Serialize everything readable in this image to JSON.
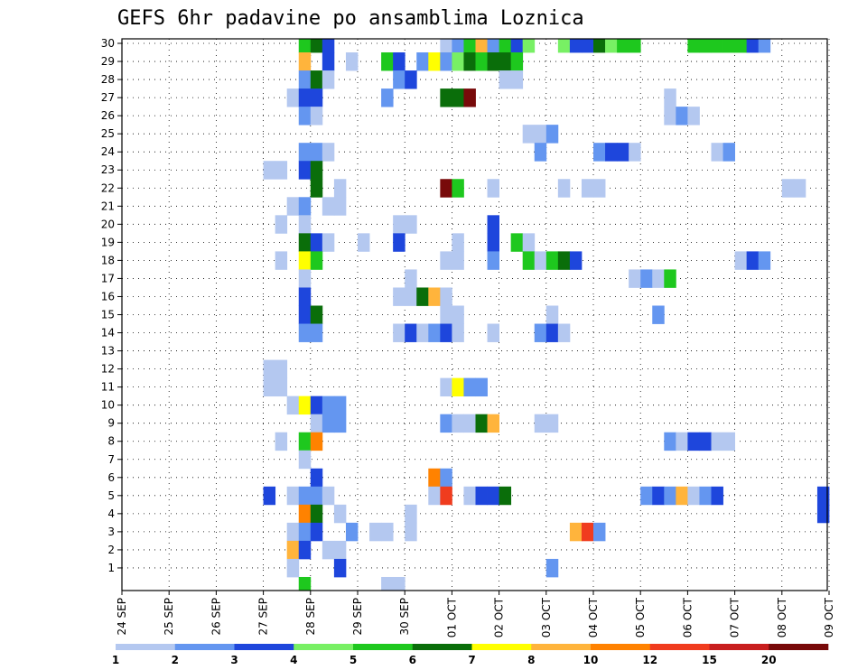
{
  "chart_data": {
    "type": "heatmap",
    "title": "GEFS 6hr padavine po ansamblima Loznica",
    "y_tick_labels": [
      "1",
      "2",
      "3",
      "4",
      "5",
      "6",
      "7",
      "8",
      "9",
      "10",
      "11",
      "12",
      "13",
      "14",
      "15",
      "16",
      "17",
      "18",
      "19",
      "20",
      "21",
      "22",
      "23",
      "24",
      "25",
      "26",
      "27",
      "28",
      "29",
      "30"
    ],
    "x_tick_labels": [
      "24 SEP",
      "25 SEP",
      "26 SEP",
      "27 SEP",
      "28 SEP",
      "29 SEP",
      "30 SEP",
      "01 OCT",
      "02 OCT",
      "03 OCT",
      "04 OCT",
      "05 OCT",
      "06 OCT",
      "07 OCT",
      "08 OCT",
      "09 OCT"
    ],
    "steps_per_day": 4,
    "legend": {
      "labels": [
        "1",
        "2",
        "3",
        "4",
        "5",
        "6",
        "7",
        "8",
        "10",
        "12",
        "15",
        "20"
      ],
      "colors": [
        "#b4c8f0",
        "#6496f0",
        "#1e46dc",
        "#78f064",
        "#1ec81e",
        "#0a6e0a",
        "#ffff00",
        "#ffb43c",
        "#ff8200",
        "#f03c1e",
        "#c81e1e",
        "#780a0a"
      ]
    },
    "cells": [
      {
        "m": 30,
        "t": [
          [
            15,
            4
          ],
          [
            16,
            5
          ],
          [
            17,
            2
          ],
          [
            27,
            0
          ],
          [
            28,
            1
          ],
          [
            29,
            4
          ],
          [
            30,
            7
          ],
          [
            31,
            1
          ],
          [
            32,
            4
          ],
          [
            33,
            2
          ],
          [
            34,
            3
          ],
          [
            37,
            3
          ],
          [
            38,
            2
          ],
          [
            39,
            2
          ],
          [
            40,
            5
          ],
          [
            41,
            3
          ],
          [
            42,
            4
          ],
          [
            43,
            4
          ],
          [
            48,
            4
          ],
          [
            49,
            4
          ],
          [
            50,
            4
          ],
          [
            51,
            4
          ],
          [
            52,
            4
          ],
          [
            53,
            2
          ],
          [
            54,
            1
          ]
        ]
      },
      {
        "m": 29,
        "t": [
          [
            15,
            7
          ],
          [
            17,
            2
          ],
          [
            19,
            0
          ],
          [
            22,
            4
          ],
          [
            23,
            2
          ],
          [
            25,
            1
          ],
          [
            26,
            6
          ],
          [
            27,
            1
          ],
          [
            28,
            3
          ],
          [
            29,
            5
          ],
          [
            30,
            4
          ],
          [
            31,
            5
          ],
          [
            32,
            5
          ],
          [
            33,
            4
          ]
        ]
      },
      {
        "m": 28,
        "t": [
          [
            15,
            1
          ],
          [
            16,
            5
          ],
          [
            17,
            0
          ],
          [
            23,
            1
          ],
          [
            24,
            2
          ],
          [
            32,
            0
          ],
          [
            33,
            0
          ]
        ]
      },
      {
        "m": 27,
        "t": [
          [
            14,
            0
          ],
          [
            15,
            2
          ],
          [
            16,
            2
          ],
          [
            22,
            1
          ],
          [
            27,
            5
          ],
          [
            28,
            5
          ],
          [
            29,
            11
          ],
          [
            46,
            0
          ]
        ]
      },
      {
        "m": 26,
        "t": [
          [
            15,
            1
          ],
          [
            16,
            0
          ],
          [
            46,
            0
          ],
          [
            47,
            1
          ],
          [
            48,
            0
          ]
        ]
      },
      {
        "m": 25,
        "t": [
          [
            34,
            0
          ],
          [
            35,
            0
          ],
          [
            36,
            1
          ]
        ]
      },
      {
        "m": 24,
        "t": [
          [
            15,
            1
          ],
          [
            16,
            1
          ],
          [
            17,
            0
          ],
          [
            35,
            1
          ],
          [
            40,
            1
          ],
          [
            41,
            2
          ],
          [
            42,
            2
          ],
          [
            43,
            0
          ],
          [
            50,
            0
          ],
          [
            51,
            1
          ]
        ]
      },
      {
        "m": 23,
        "t": [
          [
            12,
            0
          ],
          [
            13,
            0
          ],
          [
            15,
            2
          ],
          [
            16,
            5
          ]
        ]
      },
      {
        "m": 22,
        "t": [
          [
            16,
            5
          ],
          [
            18,
            0
          ],
          [
            27,
            11
          ],
          [
            28,
            4
          ],
          [
            31,
            0
          ],
          [
            37,
            0
          ],
          [
            39,
            0
          ],
          [
            40,
            0
          ],
          [
            56,
            0
          ],
          [
            57,
            0
          ]
        ]
      },
      {
        "m": 21,
        "t": [
          [
            14,
            0
          ],
          [
            15,
            1
          ],
          [
            17,
            0
          ],
          [
            18,
            0
          ]
        ]
      },
      {
        "m": 20,
        "t": [
          [
            13,
            0
          ],
          [
            15,
            0
          ],
          [
            23,
            0
          ],
          [
            24,
            0
          ],
          [
            31,
            2
          ]
        ]
      },
      {
        "m": 19,
        "t": [
          [
            15,
            5
          ],
          [
            16,
            2
          ],
          [
            17,
            0
          ],
          [
            20,
            0
          ],
          [
            23,
            2
          ],
          [
            28,
            0
          ],
          [
            31,
            2
          ],
          [
            33,
            4
          ],
          [
            34,
            0
          ]
        ]
      },
      {
        "m": 18,
        "t": [
          [
            13,
            0
          ],
          [
            15,
            6
          ],
          [
            16,
            4
          ],
          [
            27,
            0
          ],
          [
            28,
            0
          ],
          [
            31,
            1
          ],
          [
            34,
            4
          ],
          [
            35,
            0
          ],
          [
            36,
            4
          ],
          [
            37,
            5
          ],
          [
            38,
            2
          ],
          [
            52,
            0
          ],
          [
            53,
            2
          ],
          [
            54,
            1
          ]
        ]
      },
      {
        "m": 17,
        "t": [
          [
            15,
            0
          ],
          [
            24,
            0
          ],
          [
            43,
            0
          ],
          [
            44,
            1
          ],
          [
            45,
            0
          ],
          [
            46,
            4
          ]
        ]
      },
      {
        "m": 16,
        "t": [
          [
            15,
            2
          ],
          [
            23,
            0
          ],
          [
            24,
            0
          ],
          [
            25,
            5
          ],
          [
            26,
            7
          ],
          [
            27,
            0
          ]
        ]
      },
      {
        "m": 15,
        "t": [
          [
            15,
            2
          ],
          [
            16,
            5
          ],
          [
            27,
            0
          ],
          [
            28,
            0
          ],
          [
            36,
            0
          ],
          [
            45,
            1
          ]
        ]
      },
      {
        "m": 14,
        "t": [
          [
            15,
            1
          ],
          [
            16,
            1
          ],
          [
            23,
            0
          ],
          [
            24,
            2
          ],
          [
            25,
            0
          ],
          [
            26,
            1
          ],
          [
            27,
            2
          ],
          [
            28,
            0
          ],
          [
            31,
            0
          ],
          [
            35,
            1
          ],
          [
            36,
            2
          ],
          [
            37,
            0
          ]
        ]
      },
      {
        "m": 12,
        "t": [
          [
            12,
            0
          ],
          [
            13,
            0
          ]
        ]
      },
      {
        "m": 11,
        "t": [
          [
            12,
            0
          ],
          [
            13,
            0
          ],
          [
            27,
            0
          ],
          [
            28,
            6
          ],
          [
            29,
            1
          ],
          [
            30,
            1
          ]
        ]
      },
      {
        "m": 10,
        "t": [
          [
            14,
            0
          ],
          [
            15,
            6
          ],
          [
            16,
            2
          ],
          [
            17,
            1
          ],
          [
            18,
            1
          ]
        ]
      },
      {
        "m": 9,
        "t": [
          [
            16,
            0
          ],
          [
            17,
            1
          ],
          [
            18,
            1
          ],
          [
            27,
            1
          ],
          [
            28,
            0
          ],
          [
            29,
            0
          ],
          [
            30,
            5
          ],
          [
            31,
            7
          ],
          [
            35,
            0
          ],
          [
            36,
            0
          ]
        ]
      },
      {
        "m": 8,
        "t": [
          [
            13,
            0
          ],
          [
            15,
            4
          ],
          [
            16,
            8
          ],
          [
            46,
            1
          ],
          [
            47,
            0
          ],
          [
            48,
            2
          ],
          [
            49,
            2
          ],
          [
            50,
            0
          ],
          [
            51,
            0
          ]
        ]
      },
      {
        "m": 7,
        "t": [
          [
            15,
            0
          ]
        ]
      },
      {
        "m": 6,
        "t": [
          [
            16,
            2
          ],
          [
            26,
            8
          ],
          [
            27,
            1
          ]
        ]
      },
      {
        "m": 5,
        "t": [
          [
            12,
            2
          ],
          [
            14,
            0
          ],
          [
            15,
            1
          ],
          [
            16,
            1
          ],
          [
            17,
            0
          ],
          [
            26,
            0
          ],
          [
            27,
            9
          ],
          [
            29,
            0
          ],
          [
            30,
            2
          ],
          [
            31,
            2
          ],
          [
            32,
            5
          ],
          [
            44,
            1
          ],
          [
            45,
            2
          ],
          [
            46,
            1
          ],
          [
            47,
            7
          ],
          [
            48,
            0
          ],
          [
            49,
            1
          ],
          [
            50,
            2
          ],
          [
            59,
            2
          ]
        ]
      },
      {
        "m": 4,
        "t": [
          [
            15,
            8
          ],
          [
            16,
            5
          ],
          [
            18,
            0
          ],
          [
            24,
            0
          ],
          [
            59,
            2
          ]
        ]
      },
      {
        "m": 3,
        "t": [
          [
            14,
            0
          ],
          [
            15,
            1
          ],
          [
            16,
            2
          ],
          [
            19,
            1
          ],
          [
            21,
            0
          ],
          [
            22,
            0
          ],
          [
            24,
            0
          ],
          [
            38,
            7
          ],
          [
            39,
            9
          ],
          [
            40,
            1
          ]
        ]
      },
      {
        "m": 2,
        "t": [
          [
            14,
            7
          ],
          [
            15,
            2
          ],
          [
            17,
            0
          ],
          [
            18,
            0
          ]
        ]
      },
      {
        "m": 1,
        "t": [
          [
            14,
            0
          ],
          [
            18,
            2
          ],
          [
            36,
            1
          ]
        ]
      },
      {
        "m": 0,
        "t": [
          [
            15,
            4
          ],
          [
            22,
            0
          ],
          [
            23,
            0
          ]
        ]
      }
    ]
  }
}
